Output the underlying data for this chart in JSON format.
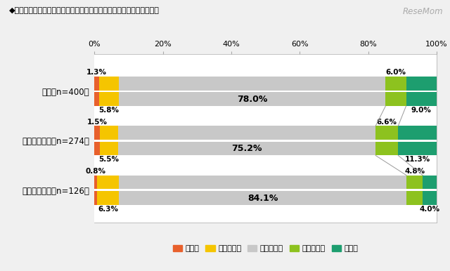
{
  "title": "◆東日本大震災以降の、採用の変化【採用予定人数】（単一回答形式）",
  "watermark": "ReseMom",
  "categories": [
    "合計【n=400】",
    "東日本エリア【n=274】",
    "西日本エリア【n=126】"
  ],
  "segments": {
    "増えた": [
      1.3,
      1.5,
      0.8
    ],
    "やや増えた": [
      5.8,
      5.5,
      6.3
    ],
    "変わらない": [
      78.0,
      75.2,
      84.1
    ],
    "やや減った": [
      6.0,
      6.6,
      4.8
    ],
    "減った": [
      9.0,
      11.3,
      4.0
    ]
  },
  "colors": {
    "増えた": "#E8602C",
    "やや増えた": "#F5C500",
    "変わらない": "#C8C8C8",
    "やや減った": "#8DC21F",
    "減った": "#1D9E6F"
  },
  "label_texts": {
    "増えた": [
      "1.3%",
      "1.5%",
      "0.8%"
    ],
    "やや増えた": [
      "5.8%",
      "5.5%",
      "6.3%"
    ],
    "変わらない": [
      "78.0%",
      "75.2%",
      "84.1%"
    ],
    "やや減った": [
      "6.0%",
      "6.6%",
      "4.8%"
    ],
    "減った": [
      "9.0%",
      "11.3%",
      "4.0%"
    ]
  },
  "background_color": "#F0F0F0",
  "plot_bg_color": "#FFFFFF",
  "font_size_labels": 7.5,
  "font_size_center": 9.0
}
